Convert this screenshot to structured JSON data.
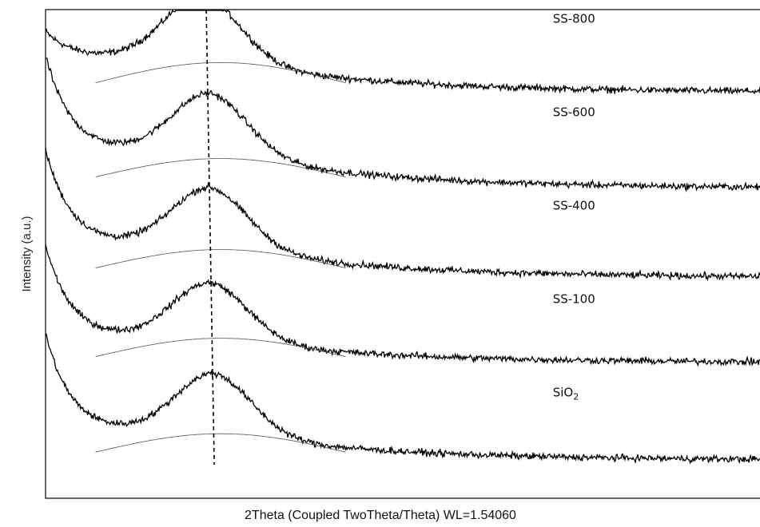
{
  "chart_data": {
    "type": "line",
    "title": "",
    "xlabel": "2Theta (Coupled TwoTheta/Theta) WL=1.54060",
    "ylabel": "Intensity (a.u.)",
    "x_ticks": false,
    "y_ticks": false,
    "grid": false,
    "legend": "none",
    "x_range": [
      0,
      1
    ],
    "reference_line": {
      "x": 0.225,
      "style": "dashed",
      "label": ""
    },
    "series": [
      {
        "name": "SS-800",
        "label_main": "SS-800",
        "label_sub": "",
        "offset": 4,
        "start_value": 0.2,
        "peak_x": 0.22,
        "peak_height": 0.68,
        "background_hump_height": 0.22,
        "tail_value": -0.42,
        "noise": 0.03
      },
      {
        "name": "SS-600",
        "label_main": "SS-600",
        "label_sub": "",
        "offset": 3,
        "start_value": 0.95,
        "peak_x": 0.23,
        "peak_height": 0.63,
        "background_hump_height": 0.2,
        "tail_value": -0.45,
        "noise": 0.03
      },
      {
        "name": "SS-400",
        "label_main": "SS-400",
        "label_sub": "",
        "offset": 2,
        "start_value": 0.95,
        "peak_x": 0.23,
        "peak_height": 0.62,
        "background_hump_height": 0.2,
        "tail_value": -0.4,
        "noise": 0.03
      },
      {
        "name": "SS-100",
        "label_main": "SS-100",
        "label_sub": "",
        "offset": 1,
        "start_value": 0.95,
        "peak_x": 0.23,
        "peak_height": 0.6,
        "background_hump_height": 0.2,
        "tail_value": -0.3,
        "noise": 0.03
      },
      {
        "name": "SiO2",
        "label_main": "SiO",
        "label_sub": "2",
        "offset": 0,
        "start_value": 1.0,
        "peak_x": 0.235,
        "peak_height": 0.63,
        "background_hump_height": 0.2,
        "tail_value": -0.35,
        "noise": 0.03
      }
    ]
  }
}
